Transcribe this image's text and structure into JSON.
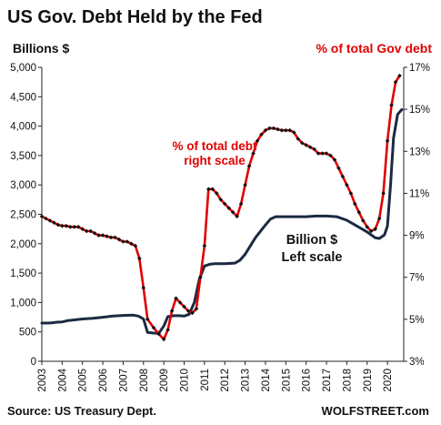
{
  "chart_data": {
    "type": "line",
    "title": "US Gov. Debt Held by the Fed",
    "left_axis_label": "Billions $",
    "right_axis_label": "% of total Gov debt",
    "left_ylim": [
      0,
      5000
    ],
    "left_ticks": [
      "0",
      "500",
      "1,000",
      "1,500",
      "2,000",
      "2,500",
      "3,000",
      "3,500",
      "4,000",
      "4,500",
      "5,000"
    ],
    "right_ylim": [
      3,
      17
    ],
    "right_ticks": [
      "3%",
      "5%",
      "7%",
      "9%",
      "11%",
      "13%",
      "15%",
      "17%"
    ],
    "x_ticks": [
      "2003",
      "2004",
      "2005",
      "2006",
      "2007",
      "2008",
      "2009",
      "2010",
      "2011",
      "2012",
      "2013",
      "2014",
      "2015",
      "2016",
      "2017",
      "2018",
      "2019",
      "2020"
    ],
    "xlim": [
      2003,
      2020.8
    ],
    "grid": false,
    "annotations": {
      "pct_line1": "% of total debt",
      "pct_line2": "right scale",
      "billion_line1": "Billion $",
      "billion_line2": "Left scale"
    },
    "series": [
      {
        "name": "Billion $",
        "axis": "left",
        "color": "#1b2a41",
        "x": [
          2003.0,
          2003.25,
          2003.5,
          2003.75,
          2004.0,
          2004.25,
          2004.5,
          2004.75,
          2005.0,
          2005.5,
          2006.0,
          2006.5,
          2007.0,
          2007.5,
          2007.75,
          2008.0,
          2008.2,
          2008.5,
          2008.75,
          2009.0,
          2009.2,
          2009.5,
          2009.75,
          2010.0,
          2010.25,
          2010.5,
          2010.75,
          2011.0,
          2011.25,
          2011.5,
          2012.0,
          2012.5,
          2012.75,
          2013.0,
          2013.5,
          2014.0,
          2014.25,
          2014.5,
          2015.0,
          2015.5,
          2016.0,
          2016.5,
          2017.0,
          2017.5,
          2018.0,
          2018.5,
          2019.0,
          2019.4,
          2019.6,
          2019.85,
          2020.0,
          2020.15,
          2020.3,
          2020.5,
          2020.7
        ],
        "values": [
          650,
          650,
          655,
          665,
          670,
          690,
          700,
          710,
          720,
          730,
          750,
          770,
          780,
          785,
          770,
          720,
          490,
          480,
          475,
          600,
          760,
          775,
          775,
          770,
          800,
          1000,
          1400,
          1620,
          1650,
          1660,
          1660,
          1670,
          1720,
          1820,
          2100,
          2320,
          2420,
          2460,
          2460,
          2460,
          2460,
          2470,
          2470,
          2460,
          2400,
          2300,
          2200,
          2100,
          2090,
          2150,
          2300,
          3000,
          3800,
          4200,
          4280
        ]
      },
      {
        "name": "% of total debt",
        "axis": "right",
        "color": "#e00000",
        "x": [
          2003.0,
          2003.2,
          2003.4,
          2003.6,
          2003.8,
          2004.0,
          2004.2,
          2004.4,
          2004.6,
          2004.8,
          2005.0,
          2005.2,
          2005.4,
          2005.6,
          2005.8,
          2006.0,
          2006.2,
          2006.4,
          2006.6,
          2006.8,
          2007.0,
          2007.2,
          2007.4,
          2007.6,
          2007.8,
          2008.0,
          2008.2,
          2008.5,
          2008.75,
          2009.0,
          2009.2,
          2009.4,
          2009.6,
          2009.8,
          2010.0,
          2010.2,
          2010.4,
          2010.6,
          2010.8,
          2011.0,
          2011.2,
          2011.4,
          2011.6,
          2011.8,
          2012.0,
          2012.2,
          2012.4,
          2012.6,
          2012.8,
          2013.0,
          2013.2,
          2013.4,
          2013.6,
          2013.8,
          2014.0,
          2014.2,
          2014.4,
          2014.6,
          2014.8,
          2015.0,
          2015.2,
          2015.4,
          2015.6,
          2015.8,
          2016.0,
          2016.2,
          2016.4,
          2016.6,
          2016.8,
          2017.0,
          2017.2,
          2017.4,
          2017.6,
          2017.8,
          2018.0,
          2018.2,
          2018.4,
          2018.6,
          2018.8,
          2019.0,
          2019.2,
          2019.4,
          2019.6,
          2019.8,
          2020.0,
          2020.2,
          2020.4,
          2020.6
        ],
        "values": [
          9.9,
          9.8,
          9.7,
          9.6,
          9.5,
          9.45,
          9.45,
          9.4,
          9.4,
          9.4,
          9.3,
          9.2,
          9.2,
          9.1,
          9.0,
          9.0,
          8.95,
          8.9,
          8.9,
          8.8,
          8.7,
          8.7,
          8.6,
          8.5,
          7.9,
          6.5,
          5.0,
          4.6,
          4.3,
          4.05,
          4.5,
          5.4,
          6.0,
          5.8,
          5.6,
          5.4,
          5.3,
          5.5,
          7.0,
          8.5,
          11.2,
          11.2,
          11.0,
          10.7,
          10.5,
          10.3,
          10.1,
          9.9,
          10.5,
          11.4,
          12.3,
          12.9,
          13.5,
          13.8,
          14.0,
          14.1,
          14.1,
          14.05,
          14.0,
          14.0,
          14.0,
          13.9,
          13.6,
          13.4,
          13.3,
          13.2,
          13.1,
          12.9,
          12.9,
          12.9,
          12.8,
          12.6,
          12.2,
          11.8,
          11.4,
          11.0,
          10.5,
          10.1,
          9.7,
          9.4,
          9.2,
          9.3,
          9.8,
          11.0,
          13.5,
          15.2,
          16.3,
          16.6
        ]
      }
    ]
  },
  "footer": {
    "source": "Source: US Treasury Dept.",
    "brand": "WOLFSTREET.com"
  }
}
